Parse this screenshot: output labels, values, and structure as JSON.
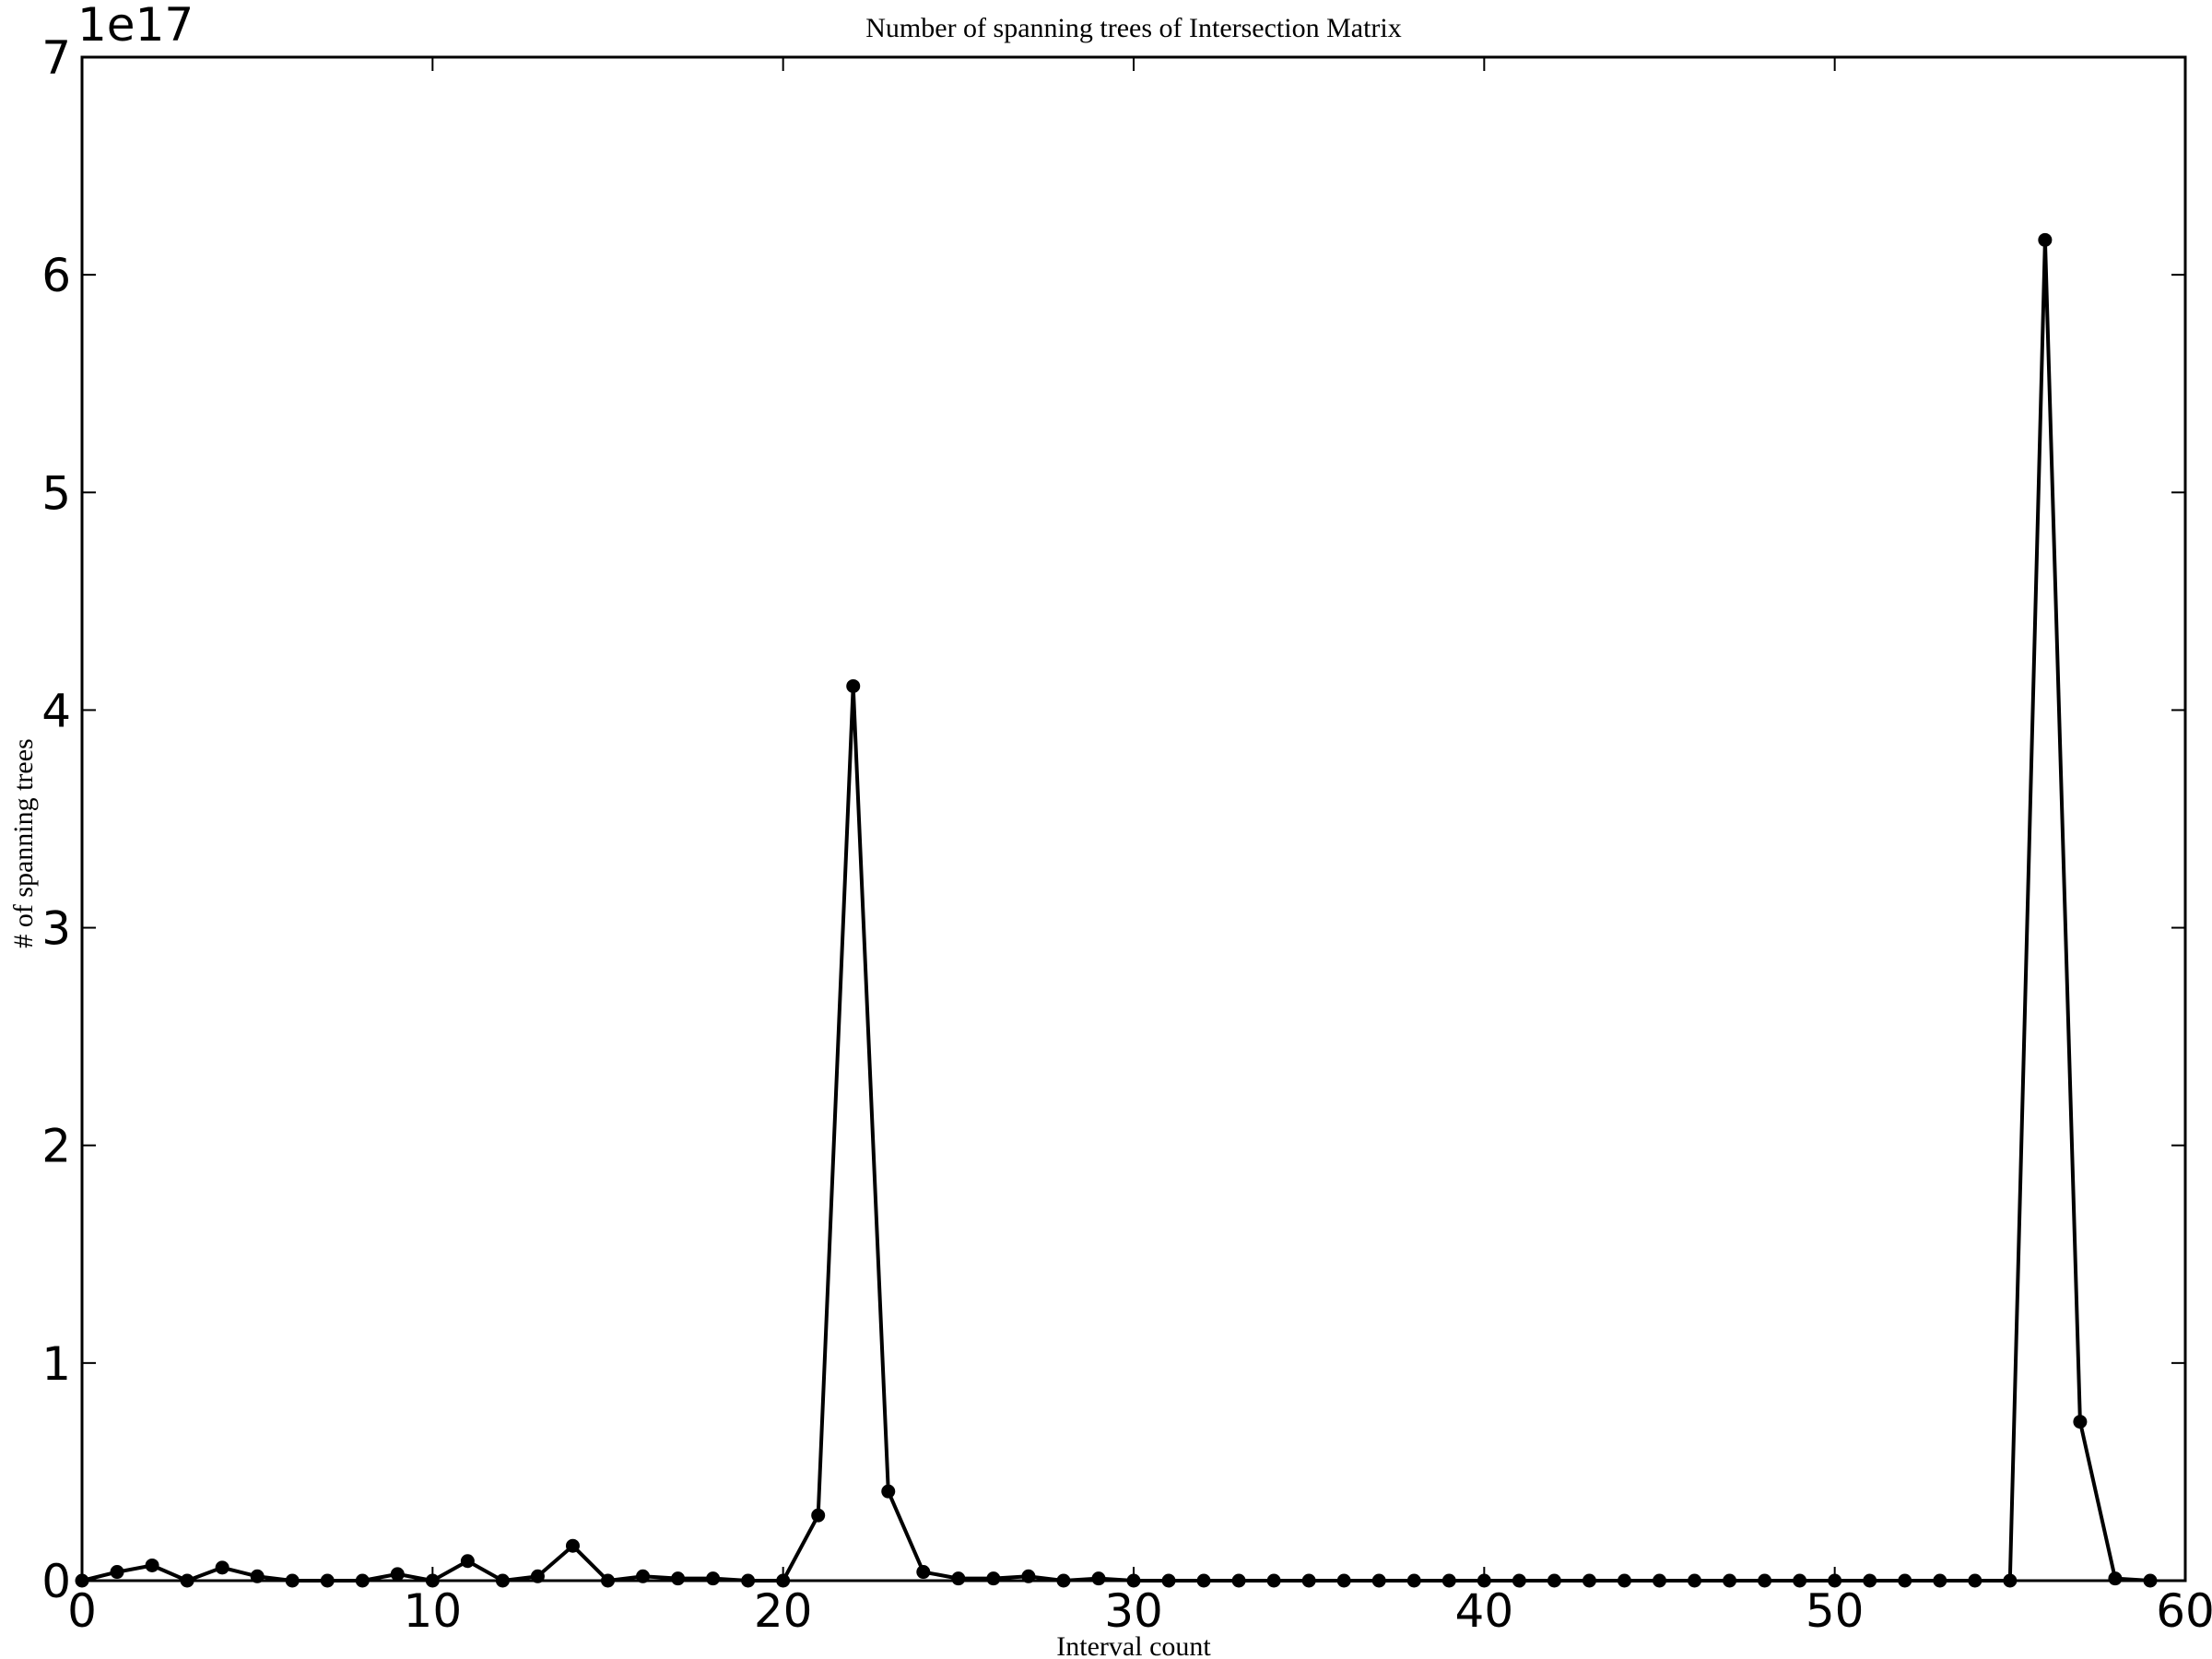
{
  "chart_data": {
    "type": "line",
    "title": "Number of spanning trees of Intersection Matrix",
    "xlabel": "Interval count",
    "ylabel": "# of spanning trees",
    "y_offset_label": "1e17",
    "xlim": [
      0,
      60
    ],
    "ylim": [
      0,
      7
    ],
    "xticks": [
      0,
      10,
      20,
      30,
      40,
      50,
      60
    ],
    "yticks": [
      0,
      1,
      2,
      3,
      4,
      5,
      6,
      7
    ],
    "grid": false,
    "series": [
      {
        "x": [
          0,
          1,
          2,
          3,
          4,
          5,
          6,
          7,
          8,
          9,
          10,
          11,
          12,
          13,
          14,
          15,
          16,
          17,
          18,
          19,
          20,
          21,
          22,
          23,
          24,
          25,
          26,
          27,
          28,
          29,
          30,
          31,
          32,
          33,
          34,
          35,
          36,
          37,
          38,
          39,
          40,
          41,
          42,
          43,
          44,
          45,
          46,
          47,
          48,
          49,
          50,
          51,
          52,
          53,
          54,
          55,
          56,
          57,
          58,
          59
        ],
        "y": [
          0.0,
          0.04,
          0.07,
          0.0,
          0.06,
          0.02,
          0.0,
          0.0,
          0.0,
          0.03,
          0.0,
          0.09,
          0.0,
          0.02,
          0.16,
          0.0,
          0.02,
          0.01,
          0.01,
          0.0,
          0.0,
          0.3,
          4.11,
          0.41,
          0.04,
          0.01,
          0.01,
          0.02,
          0.0,
          0.01,
          0.0,
          0.0,
          0.0,
          0.0,
          0.0,
          0.0,
          0.0,
          0.0,
          0.0,
          0.0,
          0.0,
          0.0,
          0.0,
          0.0,
          0.0,
          0.0,
          0.0,
          0.0,
          0.0,
          0.0,
          0.0,
          0.0,
          0.0,
          0.0,
          0.0,
          0.0,
          6.16,
          0.73,
          0.01,
          0.0
        ]
      }
    ]
  }
}
